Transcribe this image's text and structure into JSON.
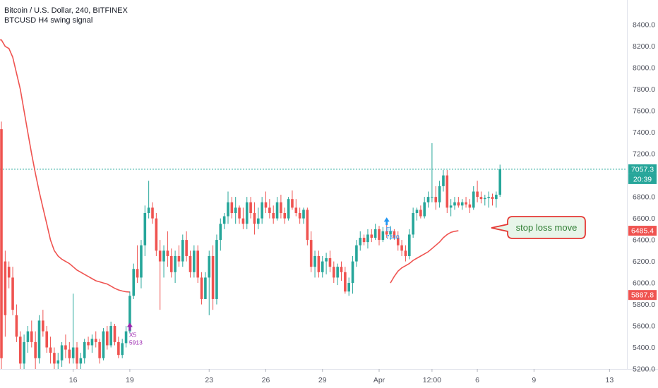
{
  "header": {
    "title": "Bitcoin / U.S. Dollar, 240, BITFINEX",
    "indicator": "BTCUSD H4 swing signal"
  },
  "chart_data": {
    "type": "candlestick",
    "ylim": [
      5200,
      8500
    ],
    "y_ticks": [
      "8400.0",
      "8200.0",
      "8000.0",
      "7800.0",
      "7600.0",
      "7400.0",
      "7200.0",
      "7000.0",
      "6800.0",
      "6600.0",
      "6400.0",
      "6200.0",
      "6000.0",
      "5800.0",
      "5600.0",
      "5400.0",
      "5200.0"
    ],
    "x_ticks": [
      {
        "label": "16",
        "idx": 19
      },
      {
        "label": "19",
        "idx": 34
      },
      {
        "label": "23",
        "idx": 55
      },
      {
        "label": "26",
        "idx": 70
      },
      {
        "label": "29",
        "idx": 85
      },
      {
        "label": "Apr",
        "idx": 100
      },
      {
        "label": "12:00",
        "idx": 114
      },
      {
        "label": "6",
        "idx": 126
      },
      {
        "label": "9",
        "idx": 141
      },
      {
        "label": "13",
        "idx": 161
      }
    ],
    "last_price": "7057.3",
    "countdown": "20:39",
    "stop_label": "6485.4",
    "old_stop_label": "5887.8",
    "candles": [
      [
        7430,
        7500,
        5200,
        5300
      ],
      [
        6200,
        6300,
        5500,
        5700
      ],
      [
        6150,
        6200,
        5950,
        6050
      ],
      [
        6050,
        6150,
        5700,
        5750
      ],
      [
        5700,
        5800,
        5450,
        5500
      ],
      [
        5500,
        5550,
        5200,
        5250
      ],
      [
        5250,
        5520,
        5200,
        5450
      ],
      [
        5450,
        5600,
        5350,
        5550
      ],
      [
        5550,
        5650,
        5400,
        5450
      ],
      [
        5450,
        5550,
        5200,
        5300
      ],
      [
        5300,
        5700,
        5250,
        5650
      ],
      [
        5650,
        5750,
        5500,
        5550
      ],
      [
        5550,
        5600,
        5350,
        5400
      ],
      [
        5400,
        5500,
        5250,
        5350
      ],
      [
        5350,
        5400,
        5200,
        5250
      ],
      [
        5250,
        5350,
        5200,
        5280
      ],
      [
        5280,
        5450,
        5220,
        5420
      ],
      [
        5420,
        5520,
        5300,
        5380
      ],
      [
        5380,
        5450,
        5250,
        5300
      ],
      [
        5300,
        5900,
        5250,
        5400
      ],
      [
        5400,
        5450,
        5200,
        5250
      ],
      [
        5250,
        5350,
        5150,
        5300
      ],
      [
        5300,
        5480,
        5250,
        5450
      ],
      [
        5450,
        5500,
        5380,
        5420
      ],
      [
        5420,
        5520,
        5350,
        5480
      ],
      [
        5480,
        5550,
        5400,
        5450
      ],
      [
        5450,
        5480,
        5250,
        5300
      ],
      [
        5300,
        5580,
        5280,
        5550
      ],
      [
        5550,
        5600,
        5380,
        5420
      ],
      [
        5420,
        5640,
        5400,
        5600
      ],
      [
        5600,
        5620,
        5420,
        5450
      ],
      [
        5450,
        5500,
        5300,
        5330
      ],
      [
        5330,
        5480,
        5300,
        5440
      ],
      [
        5440,
        5600,
        5400,
        5550
      ],
      [
        5550,
        5920,
        5530,
        5880
      ],
      [
        5880,
        6180,
        5850,
        6130
      ],
      [
        6130,
        6350,
        6000,
        6050
      ],
      [
        6050,
        6400,
        5950,
        6350
      ],
      [
        6350,
        6720,
        6250,
        6650
      ],
      [
        6650,
        6950,
        6600,
        6700
      ],
      [
        6700,
        6750,
        6550,
        6600
      ],
      [
        6600,
        6650,
        6250,
        6300
      ],
      [
        6300,
        6400,
        5750,
        6200
      ],
      [
        6200,
        6350,
        6050,
        6300
      ],
      [
        6300,
        6480,
        6150,
        6250
      ],
      [
        6250,
        6320,
        6050,
        6100
      ],
      [
        6100,
        6300,
        6000,
        6250
      ],
      [
        6250,
        6350,
        6150,
        6200
      ],
      [
        6200,
        6450,
        6150,
        6400
      ],
      [
        6400,
        6480,
        6200,
        6250
      ],
      [
        6250,
        6300,
        6050,
        6100
      ],
      [
        6100,
        6350,
        6050,
        6300
      ],
      [
        6300,
        6350,
        6000,
        6050
      ],
      [
        6050,
        6100,
        5800,
        5850
      ],
      [
        5850,
        6100,
        5850,
        6050
      ],
      [
        6050,
        6300,
        5700,
        6250
      ],
      [
        6250,
        6350,
        5750,
        5850
      ],
      [
        5850,
        6450,
        5800,
        6400
      ],
      [
        6400,
        6600,
        6300,
        6550
      ],
      [
        6550,
        6650,
        6500,
        6620
      ],
      [
        6620,
        6850,
        6550,
        6750
      ],
      [
        6750,
        6800,
        6600,
        6650
      ],
      [
        6650,
        6800,
        6550,
        6700
      ],
      [
        6700,
        6720,
        6550,
        6600
      ],
      [
        6600,
        6700,
        6500,
        6550
      ],
      [
        6550,
        6800,
        6500,
        6750
      ],
      [
        6750,
        6800,
        6600,
        6650
      ],
      [
        6650,
        6750,
        6450,
        6550
      ],
      [
        6550,
        6700,
        6500,
        6600
      ],
      [
        6600,
        6800,
        6550,
        6750
      ],
      [
        6750,
        6850,
        6650,
        6700
      ],
      [
        6700,
        6780,
        6600,
        6650
      ],
      [
        6650,
        6720,
        6550,
        6600
      ],
      [
        6600,
        6800,
        6580,
        6750
      ],
      [
        6750,
        6820,
        6600,
        6650
      ],
      [
        6650,
        6700,
        6550,
        6600
      ],
      [
        6600,
        6800,
        6580,
        6780
      ],
      [
        6780,
        6860,
        6680,
        6700
      ],
      [
        6700,
        6780,
        6620,
        6650
      ],
      [
        6650,
        6700,
        6550,
        6600
      ],
      [
        6600,
        6700,
        6550,
        6680
      ],
      [
        6680,
        6700,
        6350,
        6400
      ],
      [
        6400,
        6480,
        6100,
        6150
      ],
      [
        6150,
        6300,
        6050,
        6250
      ],
      [
        6250,
        6300,
        6050,
        6100
      ],
      [
        6100,
        6250,
        6050,
        6200
      ],
      [
        6200,
        6280,
        6080,
        6230
      ],
      [
        6230,
        6300,
        6100,
        6150
      ],
      [
        6150,
        6200,
        6000,
        6050
      ],
      [
        6050,
        6180,
        5980,
        6150
      ],
      [
        6150,
        6200,
        6020,
        6100
      ],
      [
        6100,
        6150,
        5900,
        5920
      ],
      [
        5920,
        6050,
        5880,
        6000
      ],
      [
        6000,
        6250,
        5900,
        6200
      ],
      [
        6200,
        6400,
        6150,
        6350
      ],
      [
        6350,
        6480,
        6300,
        6420
      ],
      [
        6420,
        6450,
        6350,
        6380
      ],
      [
        6380,
        6500,
        6320,
        6450
      ],
      [
        6450,
        6500,
        6380,
        6420
      ],
      [
        6420,
        6550,
        6400,
        6500
      ],
      [
        6500,
        6530,
        6350,
        6400
      ],
      [
        6400,
        6520,
        6380,
        6480
      ],
      [
        6480,
        6550,
        6420,
        6450
      ],
      [
        6450,
        6530,
        6400,
        6480
      ],
      [
        6480,
        6500,
        6400,
        6420
      ],
      [
        6420,
        6480,
        6300,
        6350
      ],
      [
        6350,
        6400,
        6250,
        6300
      ],
      [
        6300,
        6350,
        6200,
        6250
      ],
      [
        6250,
        6500,
        6220,
        6450
      ],
      [
        6450,
        6700,
        6420,
        6650
      ],
      [
        6650,
        6700,
        6580,
        6680
      ],
      [
        6680,
        6720,
        6600,
        6620
      ],
      [
        6620,
        6800,
        6600,
        6750
      ],
      [
        6750,
        6850,
        6700,
        6800
      ],
      [
        6800,
        7300,
        6750,
        6800
      ],
      [
        6800,
        6900,
        6680,
        6750
      ],
      [
        6750,
        6950,
        6700,
        6900
      ],
      [
        6900,
        7050,
        6850,
        7000
      ],
      [
        7000,
        7050,
        6650,
        6700
      ],
      [
        6700,
        6780,
        6620,
        6720
      ],
      [
        6720,
        6800,
        6680,
        6750
      ],
      [
        6750,
        6800,
        6700,
        6720
      ],
      [
        6720,
        6780,
        6680,
        6750
      ],
      [
        6750,
        6800,
        6700,
        6730
      ],
      [
        6730,
        6780,
        6650,
        6700
      ],
      [
        6700,
        6900,
        6680,
        6850
      ],
      [
        6850,
        6950,
        6750,
        6800
      ],
      [
        6800,
        6850,
        6740,
        6780
      ],
      [
        6780,
        6820,
        6720,
        6790
      ],
      [
        6790,
        6850,
        6700,
        6800
      ],
      [
        6800,
        6830,
        6720,
        6780
      ],
      [
        6780,
        6850,
        6700,
        6820
      ],
      [
        6820,
        7100,
        6800,
        7057
      ]
    ],
    "stop_line": [
      [
        -1,
        8260
      ],
      [
        0,
        8260
      ],
      [
        1,
        8200
      ],
      [
        2,
        8180
      ],
      [
        3,
        8100
      ],
      [
        4,
        7950
      ],
      [
        5,
        7800
      ],
      [
        6,
        7600
      ],
      [
        7,
        7400
      ],
      [
        8,
        7200
      ],
      [
        9,
        7020
      ],
      [
        10,
        6850
      ],
      [
        11,
        6700
      ],
      [
        12,
        6550
      ],
      [
        13,
        6400
      ],
      [
        14,
        6300
      ],
      [
        15,
        6250
      ],
      [
        16,
        6220
      ],
      [
        17,
        6200
      ],
      [
        18,
        6180
      ],
      [
        19,
        6150
      ],
      [
        20,
        6120
      ],
      [
        21,
        6100
      ],
      [
        22,
        6080
      ],
      [
        23,
        6060
      ],
      [
        24,
        6040
      ],
      [
        25,
        6020
      ],
      [
        26,
        6010
      ],
      [
        27,
        6000
      ],
      [
        28,
        5990
      ],
      [
        29,
        5970
      ],
      [
        30,
        5950
      ],
      [
        31,
        5935
      ],
      [
        32,
        5925
      ],
      [
        33,
        5918
      ],
      [
        34,
        5915
      ]
    ],
    "stop_line2": [
      [
        103,
        6000
      ],
      [
        104,
        6060
      ],
      [
        105,
        6110
      ],
      [
        106,
        6140
      ],
      [
        107,
        6160
      ],
      [
        108,
        6180
      ],
      [
        109,
        6210
      ],
      [
        110,
        6230
      ],
      [
        111,
        6250
      ],
      [
        112,
        6270
      ],
      [
        113,
        6290
      ],
      [
        114,
        6320
      ],
      [
        115,
        6350
      ],
      [
        116,
        6380
      ],
      [
        117,
        6420
      ],
      [
        118,
        6450
      ],
      [
        119,
        6470
      ],
      [
        120,
        6480
      ],
      [
        121,
        6485
      ]
    ],
    "signals": [
      {
        "idx": 34,
        "arrow_at": 5590,
        "label1": "X5",
        "label2": "5913",
        "color": "#9c27b0"
      },
      {
        "idx": 102,
        "arrow_at": 6570,
        "label1": "EL",
        "label2": "7310",
        "color": "#2196f3"
      }
    ],
    "annotation": "stop loss move"
  }
}
